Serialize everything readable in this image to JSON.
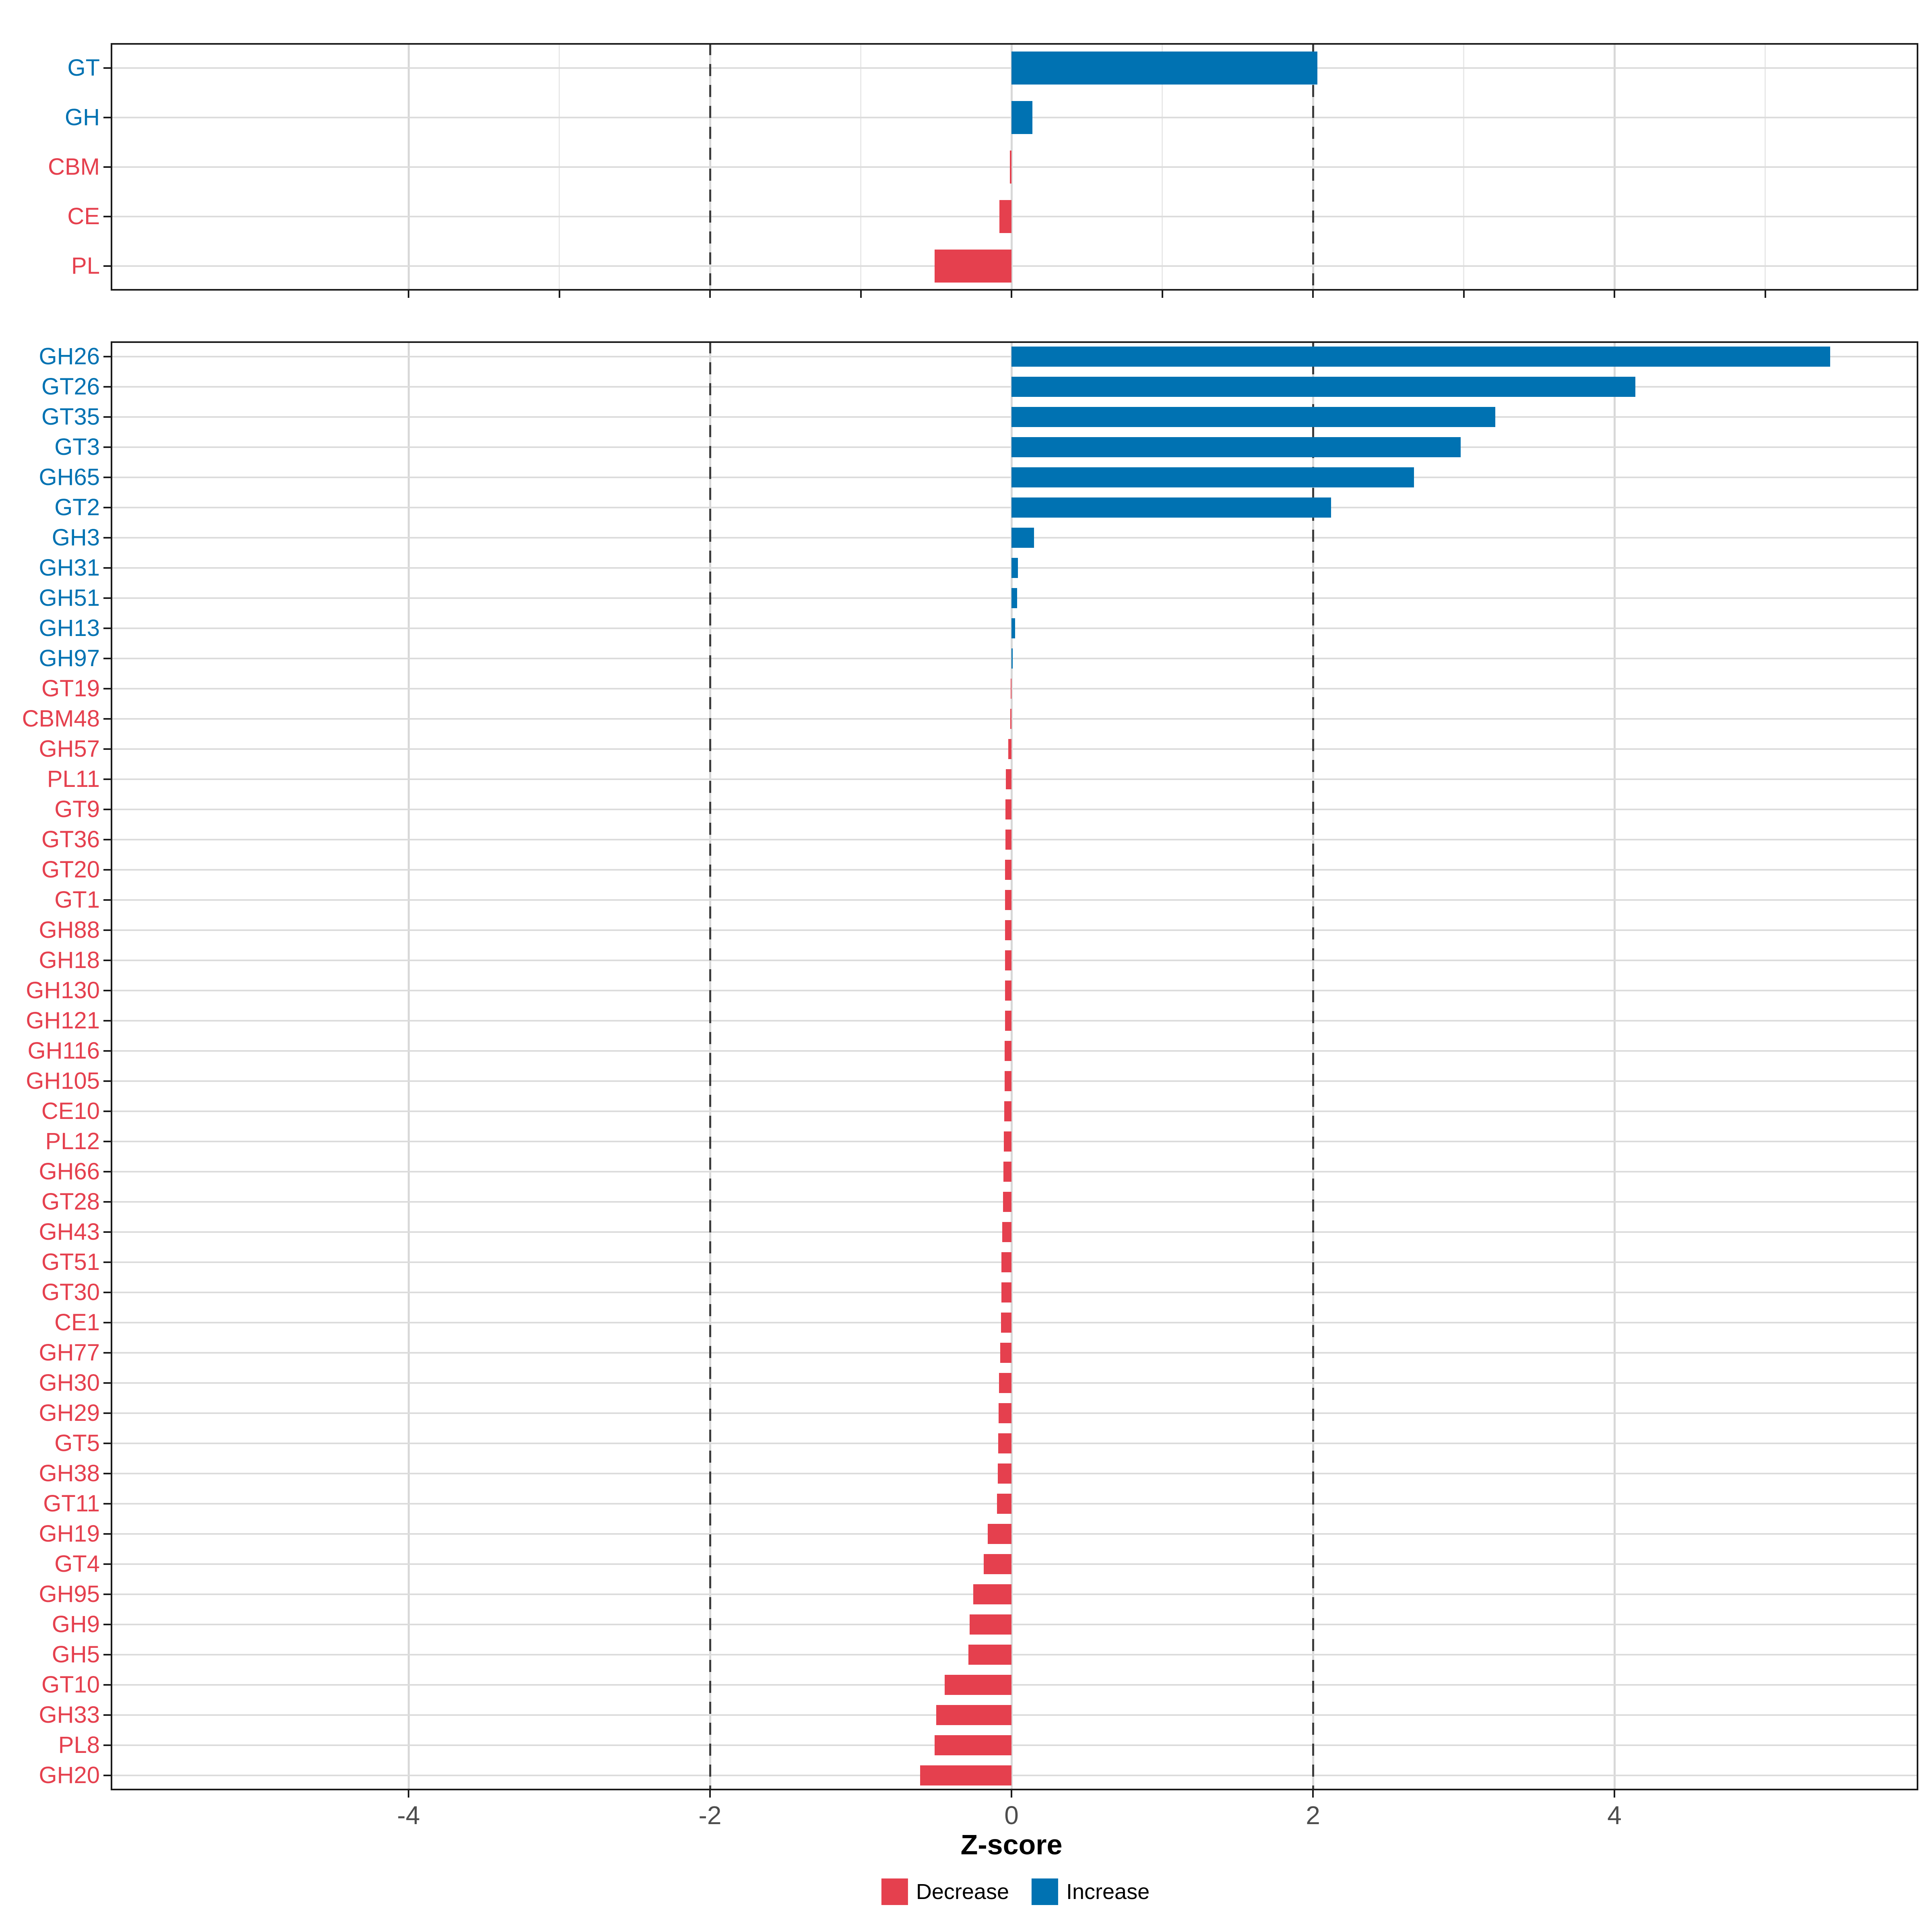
{
  "axis": {
    "xlabel": "Z-score",
    "tick_values": [
      -4,
      -2,
      0,
      2,
      4
    ],
    "tick_labels": [
      "-4",
      "-2",
      "0",
      "2",
      "4"
    ],
    "tick_label_color": "#4d4d4d"
  },
  "legend": {
    "items": [
      {
        "name": "decrease",
        "label": "Decrease",
        "color": "#e5404e"
      },
      {
        "name": "increase",
        "label": "Increase",
        "color": "#0072b2"
      }
    ]
  },
  "colors": {
    "increase": "#0072b2",
    "decrease": "#e5404e",
    "dashed_reference": "#3d3d3d",
    "grid_major": "#d8d8d8",
    "grid_minor": "#e8e8e8",
    "grid_row": "#dcdcdc",
    "axis_line": "#1b1b1b"
  },
  "reference_lines": [
    -2,
    2
  ],
  "chart_data": [
    {
      "type": "bar",
      "orientation": "horizontal",
      "panel": "top",
      "title": "",
      "xlabel": "Z-score",
      "xlim": [
        -6,
        6
      ],
      "grid": "on",
      "minor_gridlines": true,
      "categories": [
        "GT",
        "GH",
        "CBM",
        "CE",
        "PL"
      ],
      "values": [
        2.03,
        0.14,
        -0.01,
        -0.08,
        -0.51
      ]
    },
    {
      "type": "bar",
      "orientation": "horizontal",
      "panel": "bottom",
      "title": "",
      "xlabel": "Z-score",
      "xlim": [
        -6,
        6
      ],
      "grid": "on",
      "minor_gridlines": false,
      "categories": [
        "GH26",
        "GT26",
        "GT35",
        "GT3",
        "GH65",
        "GT2",
        "GH3",
        "GH31",
        "GH51",
        "GH13",
        "GH97",
        "GT19",
        "CBM48",
        "GH57",
        "PL11",
        "GT9",
        "GT36",
        "GT20",
        "GT1",
        "GH88",
        "GH18",
        "GH130",
        "GH121",
        "GH116",
        "GH105",
        "CE10",
        "PL12",
        "GH66",
        "GT28",
        "GH43",
        "GT51",
        "GT30",
        "CE1",
        "GH77",
        "GH30",
        "GH29",
        "GT5",
        "GH38",
        "GT11",
        "GH19",
        "GT4",
        "GH95",
        "GH9",
        "GH5",
        "GT10",
        "GH33",
        "PL8",
        "GH20"
      ],
      "values": [
        5.43,
        4.14,
        3.21,
        2.98,
        2.67,
        2.12,
        0.15,
        0.043,
        0.038,
        0.025,
        0.007,
        -0.002,
        -0.009,
        -0.022,
        -0.038,
        -0.04,
        -0.041,
        -0.042,
        -0.042,
        -0.043,
        -0.043,
        -0.044,
        -0.044,
        -0.045,
        -0.046,
        -0.047,
        -0.051,
        -0.054,
        -0.057,
        -0.062,
        -0.066,
        -0.068,
        -0.07,
        -0.076,
        -0.082,
        -0.086,
        -0.089,
        -0.091,
        -0.095,
        -0.157,
        -0.184,
        -0.255,
        -0.277,
        -0.285,
        -0.442,
        -0.5,
        -0.51,
        -0.605
      ]
    }
  ]
}
